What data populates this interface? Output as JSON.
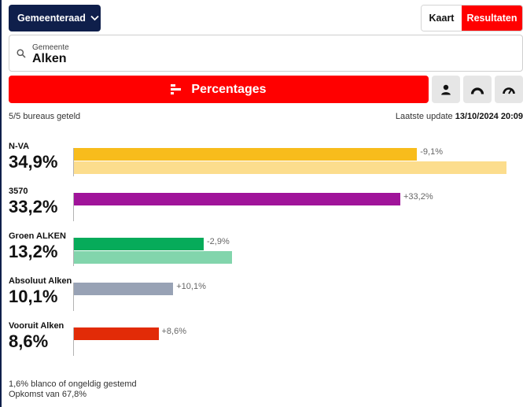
{
  "header": {
    "dropdown_label": "Gemeenteraad",
    "toggle": {
      "kaart": "Kaart",
      "resultaten": "Resultaten",
      "active": "resultaten"
    }
  },
  "search": {
    "label": "Gemeente",
    "value": "Alken"
  },
  "view": {
    "percentages_label": "Percentages"
  },
  "status": {
    "counted": "5/5 bureaus geteld",
    "update_label": "Laatste update",
    "update_value": "13/10/2024 20:09"
  },
  "colors": {
    "brand_red": "#ff0000",
    "navy": "#0f1f4b"
  },
  "chart_data": {
    "type": "bar",
    "scale_max": 41,
    "parties": [
      {
        "name": "N-VA",
        "value_label": "34,9%",
        "value": 34.9,
        "previous": 44.0,
        "delta": "-9,1%",
        "color": "#f8bc1c",
        "prev_color": "#fcdd8d"
      },
      {
        "name": "3570",
        "value_label": "33,2%",
        "value": 33.2,
        "previous": null,
        "delta": "+33,2%",
        "color": "#a0149a",
        "prev_color": null
      },
      {
        "name": "Groen ALKEN",
        "value_label": "13,2%",
        "value": 13.2,
        "previous": 16.1,
        "delta": "-2,9%",
        "color": "#06ab5a",
        "prev_color": "#82d5ac"
      },
      {
        "name": "Absoluut Alken",
        "value_label": "10,1%",
        "value": 10.1,
        "previous": null,
        "delta": "+10,1%",
        "color": "#98a2b5",
        "prev_color": null
      },
      {
        "name": "Vooruit Alken",
        "value_label": "8,6%",
        "value": 8.6,
        "previous": null,
        "delta": "+8,6%",
        "color": "#e22b07",
        "prev_color": null
      }
    ]
  },
  "footer": {
    "blanco": "1,6% blanco of ongeldig gestemd",
    "opkomst": "Opkomst van 67,8%"
  }
}
